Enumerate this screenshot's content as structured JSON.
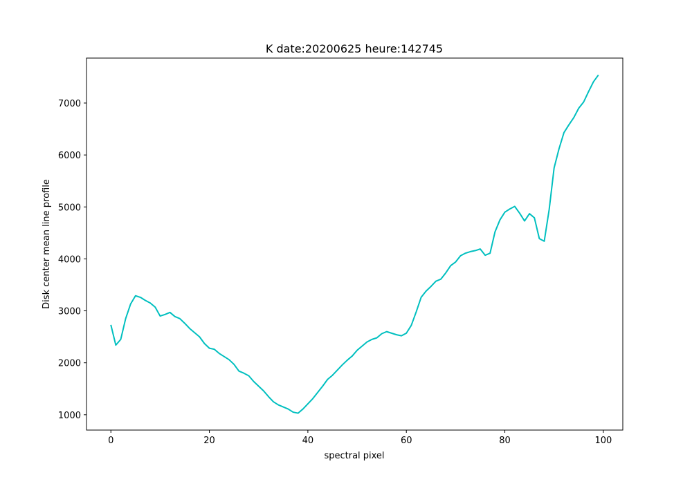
{
  "chart_data": {
    "type": "line",
    "title": "K date:20200625 heure:142745",
    "x_label": "spectral pixel",
    "y_label": "Disk center mean line profile",
    "x": [
      0,
      1,
      2,
      3,
      4,
      5,
      6,
      7,
      8,
      9,
      10,
      11,
      12,
      13,
      14,
      15,
      16,
      17,
      18,
      19,
      20,
      21,
      22,
      23,
      24,
      25,
      26,
      27,
      28,
      29,
      30,
      31,
      32,
      33,
      34,
      35,
      36,
      37,
      38,
      39,
      40,
      41,
      42,
      43,
      44,
      45,
      46,
      47,
      48,
      49,
      50,
      51,
      52,
      53,
      54,
      55,
      56,
      57,
      58,
      59,
      60,
      61,
      62,
      63,
      64,
      65,
      66,
      67,
      68,
      69,
      70,
      71,
      72,
      73,
      74,
      75,
      76,
      77,
      78,
      79,
      80,
      81,
      82,
      83,
      84,
      85,
      86,
      87,
      88,
      89,
      90,
      91,
      92,
      93,
      94,
      95,
      96,
      97,
      98,
      99
    ],
    "series": [
      {
        "color": "#00bfbf",
        "values": [
          2730,
          2340,
          2450,
          2850,
          3130,
          3290,
          3260,
          3200,
          3150,
          3070,
          2900,
          2930,
          2970,
          2890,
          2850,
          2760,
          2660,
          2580,
          2500,
          2370,
          2280,
          2260,
          2180,
          2120,
          2060,
          1970,
          1840,
          1800,
          1750,
          1640,
          1550,
          1460,
          1350,
          1250,
          1190,
          1150,
          1110,
          1050,
          1030,
          1110,
          1210,
          1310,
          1430,
          1550,
          1680,
          1760,
          1860,
          1960,
          2050,
          2130,
          2240,
          2320,
          2400,
          2450,
          2480,
          2560,
          2600,
          2570,
          2540,
          2520,
          2570,
          2720,
          2980,
          3260,
          3380,
          3470,
          3570,
          3610,
          3730,
          3870,
          3940,
          4060,
          4110,
          4140,
          4160,
          4190,
          4070,
          4110,
          4520,
          4750,
          4900,
          4960,
          5010,
          4880,
          4730,
          4870,
          4790,
          4390,
          4340,
          4950,
          5750,
          6120,
          6430,
          6580,
          6720,
          6900,
          7020,
          7220,
          7410,
          7540
        ]
      }
    ],
    "xlim": [
      -4.95,
      103.95
    ],
    "ylim": [
      705,
      7865
    ],
    "xticks": [
      0,
      20,
      40,
      60,
      80,
      100
    ],
    "yticks": [
      1000,
      2000,
      3000,
      4000,
      5000,
      6000,
      7000
    ],
    "grid": false
  }
}
